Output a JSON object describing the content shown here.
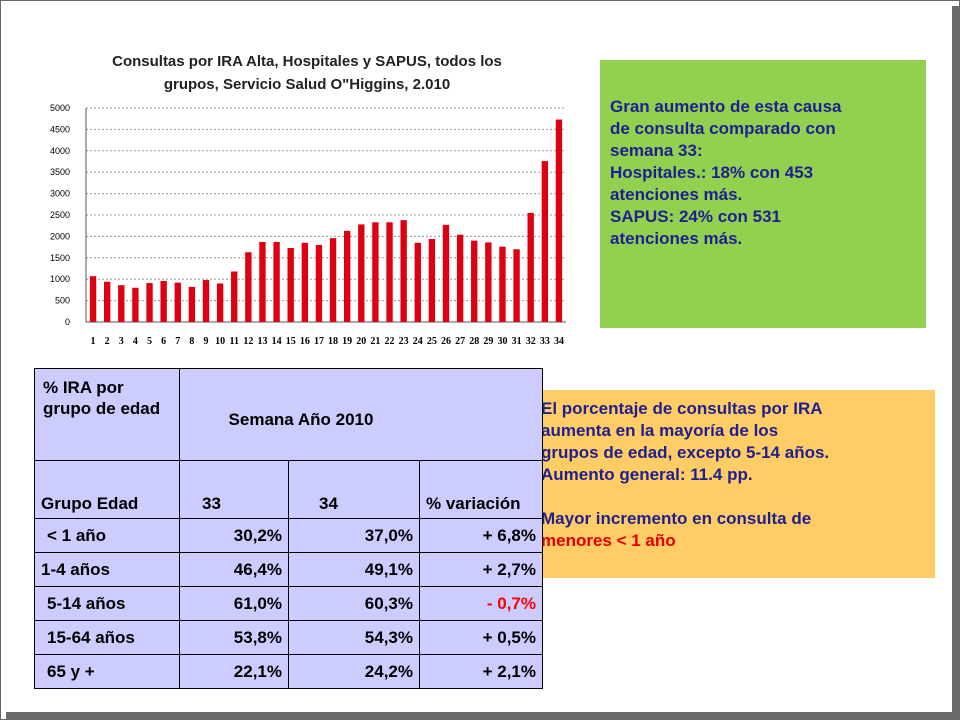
{
  "chart_data": {
    "type": "bar",
    "title_line1": "Consultas por IRA Alta, Hospitales y SAPUS, todos los",
    "title_line2": "grupos, Servicio Salud O\"Higgins, 2.010",
    "categories": [
      "1",
      "2",
      "3",
      "4",
      "5",
      "6",
      "7",
      "8",
      "9",
      "10",
      "11",
      "12",
      "13",
      "14",
      "15",
      "16",
      "17",
      "18",
      "19",
      "20",
      "21",
      "22",
      "23",
      "24",
      "25",
      "26",
      "27",
      "28",
      "29",
      "30",
      "31",
      "32",
      "33",
      "34"
    ],
    "values": [
      1070,
      940,
      860,
      800,
      910,
      960,
      920,
      820,
      980,
      900,
      1180,
      1630,
      1870,
      1870,
      1730,
      1850,
      1800,
      1960,
      2130,
      2280,
      2330,
      2330,
      2380,
      1850,
      1940,
      2270,
      2040,
      1900,
      1860,
      1760,
      1700,
      2550,
      3760,
      4730
    ],
    "ylim": [
      0,
      5000
    ],
    "yticks": [
      "0",
      "500",
      "1000",
      "1500",
      "2000",
      "2500",
      "3000",
      "3500",
      "4000",
      "4500",
      "5000"
    ],
    "grid": true,
    "bar_color": "#dd0011"
  },
  "green_box": {
    "lines": [
      "Gran aumento de esta causa",
      "de consulta comparado con",
      "semana 33:",
      "Hospitales.:  18%  con 453",
      "atenciones más.",
      "SAPUS:  24% con 531",
      "atenciones más."
    ]
  },
  "orange_box": {
    "lines": [
      "El porcentaje de consultas por IRA",
      "aumenta en la mayoría de los",
      "grupos de edad, excepto 5-14 años.",
      "Aumento general:  11.4    pp."
    ],
    "highlight_line1": "Mayor incremento en  consulta de",
    "highlight_line2": "menores < 1 año"
  },
  "table": {
    "header_label": "% IRA por grupo de edad",
    "header_week": "Semana Año 2010",
    "col_group": "Grupo Edad",
    "col_33": "33",
    "col_34": "34",
    "col_var": "% variación",
    "rows": [
      {
        "group": "< 1 año",
        "w33": "30,2%",
        "w34": "37,0%",
        "var": "+ 6,8%",
        "var_color": "#000000"
      },
      {
        "group": "1-4 años",
        "w33": "46,4%",
        "w34": "49,1%",
        "var": "+ 2,7%",
        "var_color": "#000000"
      },
      {
        "group": "5-14 años",
        "w33": "61,0%",
        "w34": "60,3%",
        "var": "- 0,7%",
        "var_color": "#ff0000"
      },
      {
        "group": "15-64 años",
        "w33": "53,8%",
        "w34": "54,3%",
        "var": "+ 0,5%",
        "var_color": "#000000"
      },
      {
        "group": "65 y +",
        "w33": "22,1%",
        "w34": "24,2%",
        "var": "+ 2,1%",
        "var_color": "#000000"
      }
    ]
  }
}
